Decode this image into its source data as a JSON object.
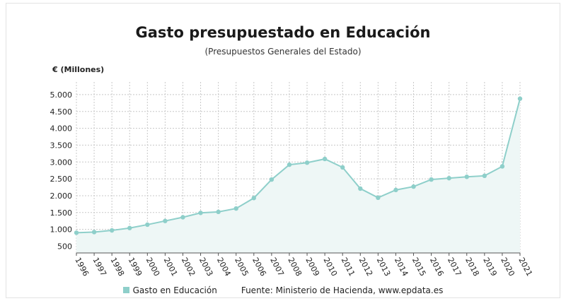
{
  "colors": {
    "series": "#8ecfca",
    "area": "#eef7f6",
    "grid": "#c8c8c8",
    "text": "#222222"
  },
  "chart_data": {
    "type": "area",
    "title": "Gasto presupuestado en Educación",
    "subtitle": "(Presupuestos Generales del Estado)",
    "ylabel": "€ (Millones)",
    "xlabel": "",
    "ylim": [
      300,
      5250
    ],
    "yticks": [
      "500",
      "1.000",
      "1.500",
      "2.000",
      "2.500",
      "3.000",
      "3.500",
      "4.000",
      "4.500",
      "5.000"
    ],
    "ytick_values": [
      500,
      1000,
      1500,
      2000,
      2500,
      3000,
      3500,
      4000,
      4500,
      5000
    ],
    "categories": [
      "1996",
      "1997",
      "1998",
      "1999",
      "2000",
      "2001",
      "2002",
      "2003",
      "2004",
      "2005",
      "2006",
      "2007",
      "2008",
      "2009",
      "2010",
      "2011",
      "2012",
      "2013",
      "2014",
      "2015",
      "2016",
      "2017",
      "2018",
      "2019",
      "2020",
      "2021"
    ],
    "series": [
      {
        "name": "Gasto en Educación",
        "values": [
          900,
          920,
          970,
          1040,
          1140,
          1250,
          1360,
          1490,
          1520,
          1620,
          1930,
          2480,
          2920,
          2980,
          3090,
          2840,
          2210,
          1940,
          2170,
          2270,
          2480,
          2520,
          2560,
          2590,
          2870,
          4880
        ]
      }
    ],
    "grid": true,
    "legend_position": "bottom"
  },
  "legend": {
    "series_label": "Gasto en Educación",
    "source": "Fuente: Ministerio de Hacienda, www.epdata.es"
  }
}
